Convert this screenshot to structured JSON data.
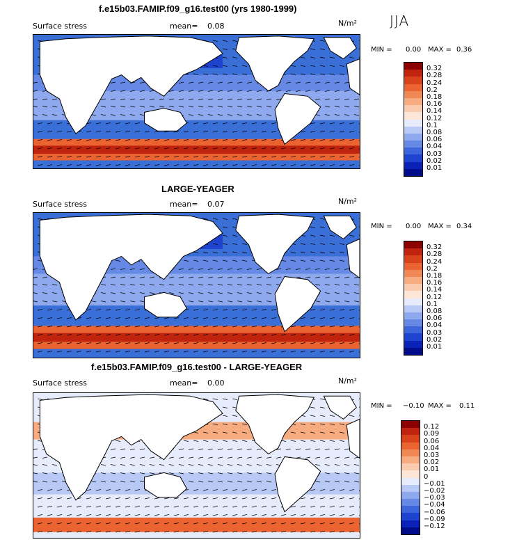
{
  "season": "JJA",
  "unit_label": "N/m²",
  "panels": [
    {
      "title": "f.e15b03.FAMIP.f09_g16.test00 (yrs 1980-1999)",
      "field_label": "Surface stress",
      "mean_label": "mean=",
      "mean_value": "0.08",
      "min_label": "MIN =",
      "min_value": "0.00",
      "max_label": "MAX =",
      "max_value": "0.36",
      "colorbar_levels": [
        "0.32",
        "0.28",
        "0.24",
        "0.2",
        "0.18",
        "0.16",
        "0.14",
        "0.12",
        "0.1",
        "0.08",
        "0.06",
        "0.04",
        "0.03",
        "0.02",
        "0.01"
      ],
      "colorbar_colors": [
        "#8b0000",
        "#c0240f",
        "#d9431c",
        "#ea6330",
        "#f08855",
        "#f7ab80",
        "#fbcbb0",
        "#fde6d8",
        "#e6ecfb",
        "#b9c9f5",
        "#8fa9ef",
        "#6689e6",
        "#3d66dc",
        "#1e44cf",
        "#0a22b8",
        "#000c8a"
      ]
    },
    {
      "title": "LARGE-YEAGER",
      "field_label": "Surface stress",
      "mean_label": "mean=",
      "mean_value": "0.07",
      "min_label": "MIN =",
      "min_value": "0.00",
      "max_label": "MAX =",
      "max_value": "0.34",
      "colorbar_levels": [
        "0.32",
        "0.28",
        "0.24",
        "0.2",
        "0.18",
        "0.16",
        "0.14",
        "0.12",
        "0.1",
        "0.08",
        "0.06",
        "0.04",
        "0.03",
        "0.02",
        "0.01"
      ],
      "colorbar_colors": [
        "#8b0000",
        "#c0240f",
        "#d9431c",
        "#ea6330",
        "#f08855",
        "#f7ab80",
        "#fbcbb0",
        "#fde6d8",
        "#e6ecfb",
        "#b9c9f5",
        "#8fa9ef",
        "#6689e6",
        "#3d66dc",
        "#1e44cf",
        "#0a22b8",
        "#000c8a"
      ]
    },
    {
      "title": "f.e15b03.FAMIP.f09_g16.test00 - LARGE-YEAGER",
      "field_label": "Surface stress",
      "mean_label": "mean=",
      "mean_value": "0.00",
      "min_label": "MIN =",
      "min_value": "−0.10",
      "max_label": "MAX =",
      "max_value": "0.11",
      "colorbar_levels": [
        "0.12",
        "0.09",
        "0.06",
        "0.04",
        "0.03",
        "0.02",
        "0.01",
        "0",
        "−0.01",
        "−0.02",
        "−0.03",
        "−0.04",
        "−0.06",
        "−0.09",
        "−0.12"
      ],
      "colorbar_colors": [
        "#8b0000",
        "#c0240f",
        "#d9431c",
        "#ea6330",
        "#f08855",
        "#f7ab80",
        "#fbcbb0",
        "#fde6d8",
        "#e6ecfb",
        "#b9c9f5",
        "#8fa9ef",
        "#6689e6",
        "#3d66dc",
        "#1e44cf",
        "#0a22b8",
        "#000c8a"
      ]
    }
  ],
  "chart_data": [
    {
      "type": "heatmap",
      "title": "f.e15b03.FAMIP.f09_g16.test00 (yrs 1980-1999)",
      "subtitle": "Surface stress (JJA)",
      "units": "N/m²",
      "mean": 0.08,
      "min": 0.0,
      "max": 0.36,
      "colorbar_levels": [
        0.32,
        0.28,
        0.24,
        0.2,
        0.18,
        0.16,
        0.14,
        0.12,
        0.1,
        0.08,
        0.06,
        0.04,
        0.03,
        0.02,
        0.01
      ]
    },
    {
      "type": "heatmap",
      "title": "LARGE-YEAGER",
      "subtitle": "Surface stress (JJA)",
      "units": "N/m²",
      "mean": 0.07,
      "min": 0.0,
      "max": 0.34,
      "colorbar_levels": [
        0.32,
        0.28,
        0.24,
        0.2,
        0.18,
        0.16,
        0.14,
        0.12,
        0.1,
        0.08,
        0.06,
        0.04,
        0.03,
        0.02,
        0.01
      ]
    },
    {
      "type": "heatmap",
      "title": "f.e15b03.FAMIP.f09_g16.test00 - LARGE-YEAGER",
      "subtitle": "Surface stress (JJA)",
      "units": "N/m²",
      "mean": 0.0,
      "min": -0.1,
      "max": 0.11,
      "colorbar_levels": [
        0.12,
        0.09,
        0.06,
        0.04,
        0.03,
        0.02,
        0.01,
        0,
        -0.01,
        -0.02,
        -0.03,
        -0.04,
        -0.06,
        -0.09,
        -0.12
      ]
    }
  ]
}
